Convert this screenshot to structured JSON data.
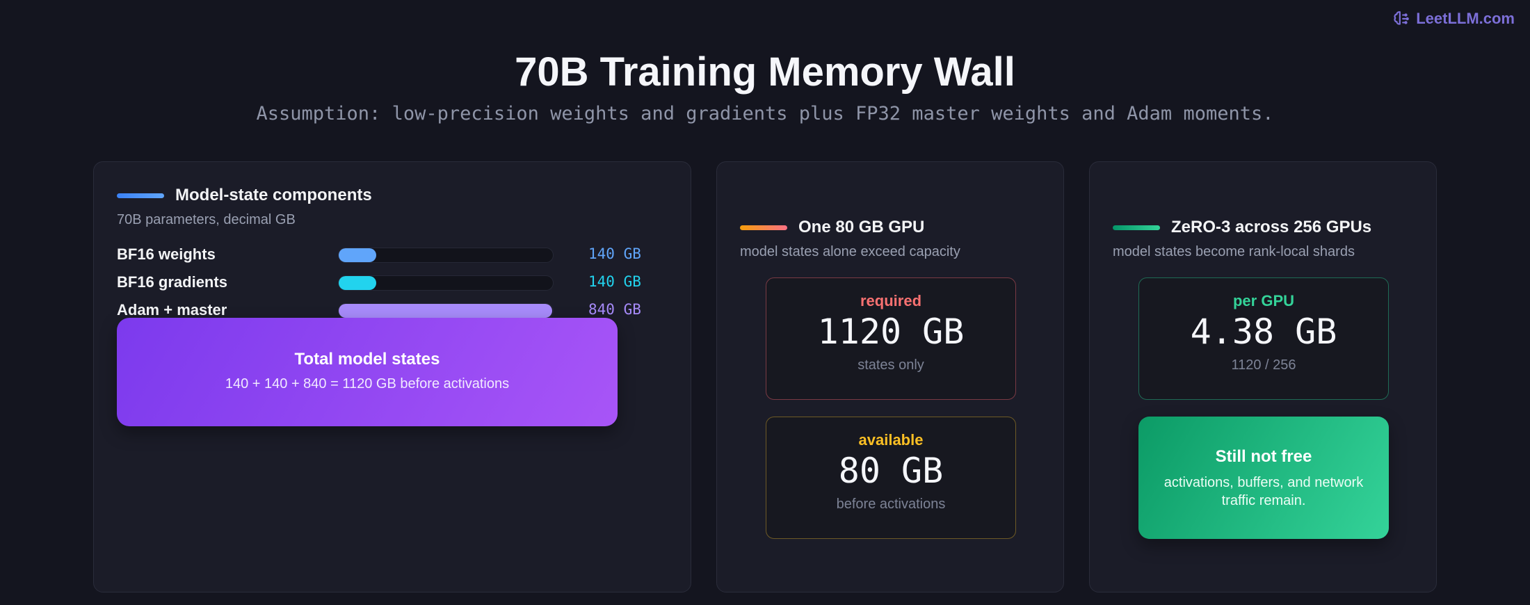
{
  "brand": {
    "text": "LeetLLM.com",
    "icon": "brain-icon"
  },
  "title": "70B Training Memory Wall",
  "subtitle": "Assumption: low-precision weights and gradients plus FP32 master weights and Adam moments.",
  "colors": {
    "blue": "#60a5fa",
    "cyan": "#22d3ee",
    "purple": "#a78bfa",
    "orange": "#fb923c",
    "green": "#34d399",
    "red": "#f87171",
    "amber": "#fbbf24"
  },
  "components_panel": {
    "title": "Model-state components",
    "subtitle": "70B parameters, decimal GB",
    "scale_max_gb": 840,
    "rows": [
      {
        "label": "BF16 weights",
        "value_gb": 140,
        "value_text": "140 GB",
        "color": "#60a5fa"
      },
      {
        "label": "BF16 gradients",
        "value_gb": 140,
        "value_text": "140 GB",
        "color": "#22d3ee"
      },
      {
        "label": "Adam + master",
        "value_gb": 840,
        "value_text": "840 GB",
        "color": "#a78bfa"
      }
    ],
    "total": {
      "title": "Total model states",
      "subtitle": "140 + 140 + 840 = 1120 GB before activations"
    }
  },
  "single_gpu_panel": {
    "title": "One 80 GB GPU",
    "subtitle": "model states alone exceed capacity",
    "required": {
      "label": "required",
      "value": "1120 GB",
      "note": "states only"
    },
    "available": {
      "label": "available",
      "value": "80 GB",
      "note": "before activations"
    }
  },
  "zero_panel": {
    "title": "ZeRO-3 across 256 GPUs",
    "subtitle": "model states become rank-local shards",
    "per_gpu": {
      "label": "per GPU",
      "value": "4.38 GB",
      "note": "1120 / 256"
    },
    "still_not_free": {
      "title": "Still not free",
      "subtitle": "activations, buffers, and network traffic remain."
    }
  }
}
